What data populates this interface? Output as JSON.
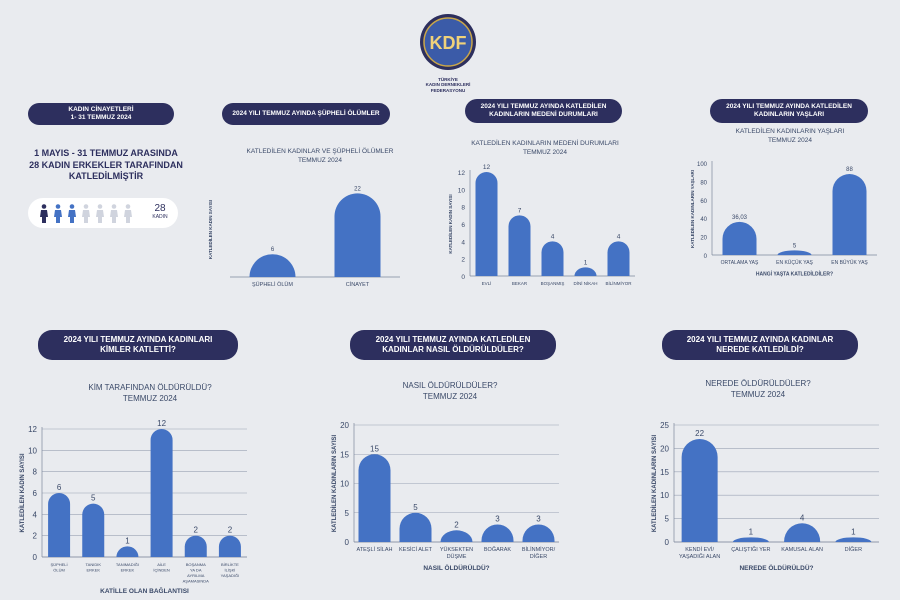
{
  "logo": {
    "monogram": "KDF",
    "lines": [
      "TÜRKİYE",
      "KADIN DERNEKLERİ",
      "FEDERASYONU"
    ]
  },
  "header_pill": {
    "lines": [
      "KADIN CİNAYETLERİ",
      "1- 31 TEMMUZ 2024"
    ]
  },
  "summary": {
    "lines": [
      "1 MAYIS - 31 TEMMUZ ARASINDA",
      "28 KADIN ERKEKLER TARAFINDAN",
      "KATLEDİLMİŞTİR"
    ],
    "figure_count": "28",
    "figure_unit": "KADIN",
    "figures_highlighted": 3,
    "figures_total": 7
  },
  "colors": {
    "bar": "#4472c4",
    "pill": "#2d2f5e",
    "background": "#e9ebef",
    "figure_dark": "#2d2f5e",
    "figure_blue": "#4472c4",
    "figure_light": "#d0d4de"
  },
  "panels": [
    {
      "id": "supheli",
      "pill": [
        "2024 YILI TEMMUZ AYINDA ŞÜPHELİ ÖLÜMLER"
      ],
      "chart_title": [
        "KATLEDİLEN KADINLAR VE ŞÜPHELİ ÖLÜMLER",
        "TEMMUZ 2024"
      ]
    },
    {
      "id": "medeni",
      "pill": [
        "2024 YILI TEMMUZ AYINDA KATLEDİLEN",
        "KADINLARIN MEDENİ DURUMLARI"
      ],
      "chart_title": [
        "KATLEDİLEN KADINLARIN MEDENİ DURUMLARI",
        "TEMMUZ 2024"
      ]
    },
    {
      "id": "yas",
      "pill": [
        "2024 YILI TEMMUZ AYINDA KATLEDİLEN",
        "KADINLARIN YAŞLARI"
      ],
      "chart_title": [
        "KATLEDİLEN KADINLARIN YAŞLARI",
        "TEMMUZ 2024"
      ]
    },
    {
      "id": "kimler",
      "pill": [
        "2024 YILI TEMMUZ AYINDA KADINLARI",
        "KİMLER KATLETTİ?"
      ],
      "chart_title": [
        "KİM TARAFINDAN ÖLDÜRÜLDÜ?",
        "TEMMUZ 2024"
      ]
    },
    {
      "id": "nasil",
      "pill": [
        "2024 YILI TEMMUZ AYINDA KATLEDİLEN",
        "KADINLAR NASIL ÖLDÜRÜLDÜLER?"
      ],
      "chart_title": [
        "NASIL ÖLDÜRÜLDÜLER?",
        "TEMMUZ 2024"
      ]
    },
    {
      "id": "nerede",
      "pill": [
        "2024 YILI TEMMUZ AYINDA KADINLAR",
        "NEREDE KATLEDİLDİ?"
      ],
      "chart_title": [
        "NEREDE ÖLDÜRÜLDÜLER?",
        "TEMMUZ 2024"
      ]
    }
  ],
  "chart_data": [
    {
      "type": "bar",
      "categories": [
        "ŞÜPHELİ ÖLÜM",
        "CİNAYET"
      ],
      "values": [
        6,
        22
      ],
      "value_labels": [
        "6",
        "22"
      ],
      "title": "KATLEDİLEN KADINLAR VE ŞÜPHELİ ÖLÜMLER TEMMUZ 2024",
      "xlabel": "",
      "ylabel": "KATLEDİLEN KADIN SAYISI",
      "ylim": [
        0,
        25
      ],
      "yticks": [],
      "grid": false
    },
    {
      "type": "bar",
      "categories": [
        "EVLİ",
        "BEKAR",
        "BOŞANMIŞ",
        "DİNİ NİKAH",
        "BİLİNMİYOR"
      ],
      "values": [
        12,
        7,
        4,
        1,
        4
      ],
      "value_labels": [
        "12",
        "7",
        "4",
        "1",
        "4"
      ],
      "title": "KATLEDİLEN KADINLARIN MEDENİ DURUMLARI TEMMUZ 2024",
      "xlabel": "",
      "ylabel": "KATLEDİLEN KADIN SAYISI",
      "ylim": [
        0,
        12
      ],
      "yticks": [
        0,
        2,
        4,
        6,
        8,
        10,
        12
      ],
      "grid": false
    },
    {
      "type": "bar",
      "categories": [
        "ORTALAMA YAŞ",
        "EN KÜÇÜK YAŞ",
        "EN BÜYÜK YAŞ"
      ],
      "values": [
        36.03,
        5,
        88
      ],
      "value_labels": [
        "36,03",
        "5",
        "88"
      ],
      "title": "KATLEDİLEN KADINLARIN YAŞLARI TEMMUZ 2024",
      "xlabel": "HANGİ YAŞTA KATLEDİLDİLER?",
      "ylabel": "KATLEDİLEN KADINLARIN YAŞLARI",
      "ylim": [
        0,
        100
      ],
      "yticks": [
        0,
        20,
        40,
        60,
        80,
        100
      ],
      "grid": false
    },
    {
      "type": "bar",
      "categories": [
        [
          "ŞÜPHELİ",
          "ÖLÜM"
        ],
        [
          "TANIDIK",
          "ERKEK"
        ],
        [
          "TANIMADIĞI",
          "ERKEK"
        ],
        [
          "AİLE",
          "İÇİNDEN"
        ],
        [
          "BOŞANMA",
          "YA DA",
          "AYRILMA",
          "AŞAMASINDA"
        ],
        [
          "BİRLİKTE",
          "İLİŞKİ",
          "YAŞADIĞI"
        ]
      ],
      "values": [
        6,
        5,
        1,
        12,
        2,
        2
      ],
      "value_labels": [
        "6",
        "5",
        "1",
        "12",
        "2",
        "2"
      ],
      "title": "KİM TARAFINDAN ÖLDÜRÜLDÜ? TEMMUZ 2024",
      "xlabel": "KATİLLE OLAN BAĞLANTISI",
      "ylabel": "KATLEDİLEN KADIN SAYISI",
      "ylim": [
        0,
        12
      ],
      "yticks": [
        0,
        2,
        4,
        6,
        8,
        10,
        12
      ],
      "grid": true
    },
    {
      "type": "bar",
      "categories": [
        [
          "ATEŞLİ SİLAH"
        ],
        [
          "KESİCİ ALET"
        ],
        [
          "YÜKSEKTEN",
          "DÜŞME"
        ],
        [
          "BOĞARAK"
        ],
        [
          "BİLİNMİYOR/",
          "DİĞER"
        ]
      ],
      "values": [
        15,
        5,
        2,
        3,
        3
      ],
      "value_labels": [
        "15",
        "5",
        "2",
        "3",
        "3"
      ],
      "title": "NASIL ÖLDÜRÜLDÜLER? TEMMUZ 2024",
      "xlabel": "NASIL ÖLDÜRÜLDÜ?",
      "ylabel": "KATLEDİLEN KADINLARIN SAYISI",
      "ylim": [
        0,
        20
      ],
      "yticks": [
        0,
        5,
        10,
        15,
        20
      ],
      "grid": true
    },
    {
      "type": "bar",
      "categories": [
        [
          "KENDİ EVİ/",
          "YAŞADIĞI ALAN"
        ],
        [
          "ÇALIŞTIĞI YER"
        ],
        [
          "KAMUSAL ALAN"
        ],
        [
          "DİĞER"
        ]
      ],
      "values": [
        22,
        1,
        4,
        1
      ],
      "value_labels": [
        "22",
        "1",
        "4",
        "1"
      ],
      "title": "NEREDE ÖLDÜRÜLDÜLER? TEMMUZ 2024",
      "xlabel": "NEREDE ÖLDÜRÜLDÜ?",
      "ylabel": "KATLEDİLEN KADINLARIN SAYISI",
      "ylim": [
        0,
        25
      ],
      "yticks": [
        0,
        5,
        10,
        15,
        20,
        25
      ],
      "grid": true
    }
  ]
}
